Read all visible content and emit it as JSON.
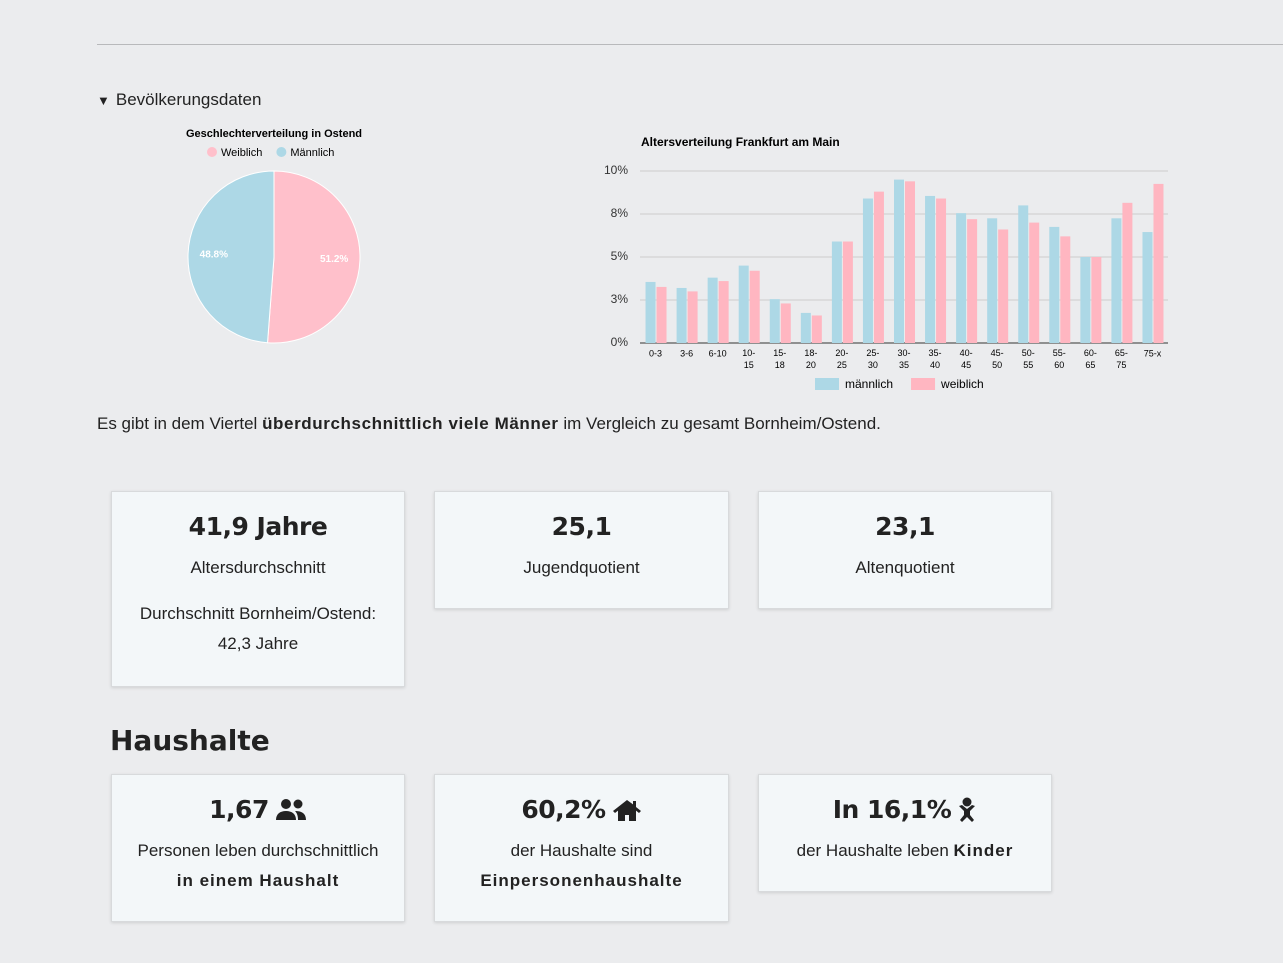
{
  "section": {
    "title": "Bevölkerungsdaten"
  },
  "chart_data": [
    {
      "type": "pie",
      "title": "Geschlechterverteilung in Ostend",
      "categories": [
        "Weiblich",
        "Männlich"
      ],
      "values": [
        51.2,
        48.8
      ],
      "value_labels": [
        "51.2%",
        "48.8%"
      ],
      "colors": [
        "#ffc0cb",
        "#add8e6"
      ],
      "legend": "top"
    },
    {
      "type": "bar",
      "title": "Altersverteilung Frankfurt am Main",
      "categories": [
        "0-3",
        "3-6",
        "6-10",
        "10-15",
        "15-18",
        "18-20",
        "20-25",
        "25-30",
        "30-35",
        "35-40",
        "40-45",
        "45-50",
        "50-55",
        "55-60",
        "60-65",
        "65-75",
        "75-x"
      ],
      "series": [
        {
          "name": "männlich",
          "color": "#add8e6",
          "values": [
            3.55,
            3.2,
            3.8,
            4.5,
            2.55,
            1.75,
            5.9,
            8.4,
            9.5,
            8.55,
            7.55,
            7.25,
            8.0,
            6.75,
            5.0,
            7.25,
            6.45
          ]
        },
        {
          "name": "weiblich",
          "color": "#ffb6c1",
          "values": [
            3.26,
            3.0,
            3.6,
            4.2,
            2.3,
            1.6,
            5.9,
            8.8,
            9.4,
            8.4,
            7.2,
            6.6,
            7.0,
            6.2,
            5.0,
            8.15,
            9.25
          ]
        }
      ],
      "ylim": [
        0,
        10
      ],
      "yticks": [
        {
          "value": 0,
          "label": "0%"
        },
        {
          "value": 2.5,
          "label": "3%"
        },
        {
          "value": 5,
          "label": "5%"
        },
        {
          "value": 7.5,
          "label": "8%"
        },
        {
          "value": 10,
          "label": "10%"
        }
      ],
      "grid": true,
      "legend": "bottom"
    }
  ],
  "summary": {
    "before": "Es gibt in dem Viertel",
    "emphasis": "überdurchschnittlich viele Männer",
    "after": "im Vergleich zu gesamt Bornheim/Ostend."
  },
  "stats": [
    {
      "value": "41,9 Jahre",
      "label": "Altersdurchschnitt",
      "note": "Durchschnitt Bornheim/Ostend:",
      "note_value": "42,3 Jahre"
    },
    {
      "value": "25,1",
      "label": "Jugendquotient"
    },
    {
      "value": "23,1",
      "label": "Altenquotient"
    }
  ],
  "households": {
    "title": "Haushalte",
    "cards": [
      {
        "value": "1,67",
        "text": "Personen leben durchschnittlich",
        "emphasis": "in einem Haushalt"
      },
      {
        "value": "60,2%",
        "text": "der Haushalte sind",
        "emphasis": "Einpersonenhaushalte"
      },
      {
        "value": "In 16,1%",
        "text": "der Haushalte leben",
        "emphasis": "Kinder"
      }
    ]
  }
}
